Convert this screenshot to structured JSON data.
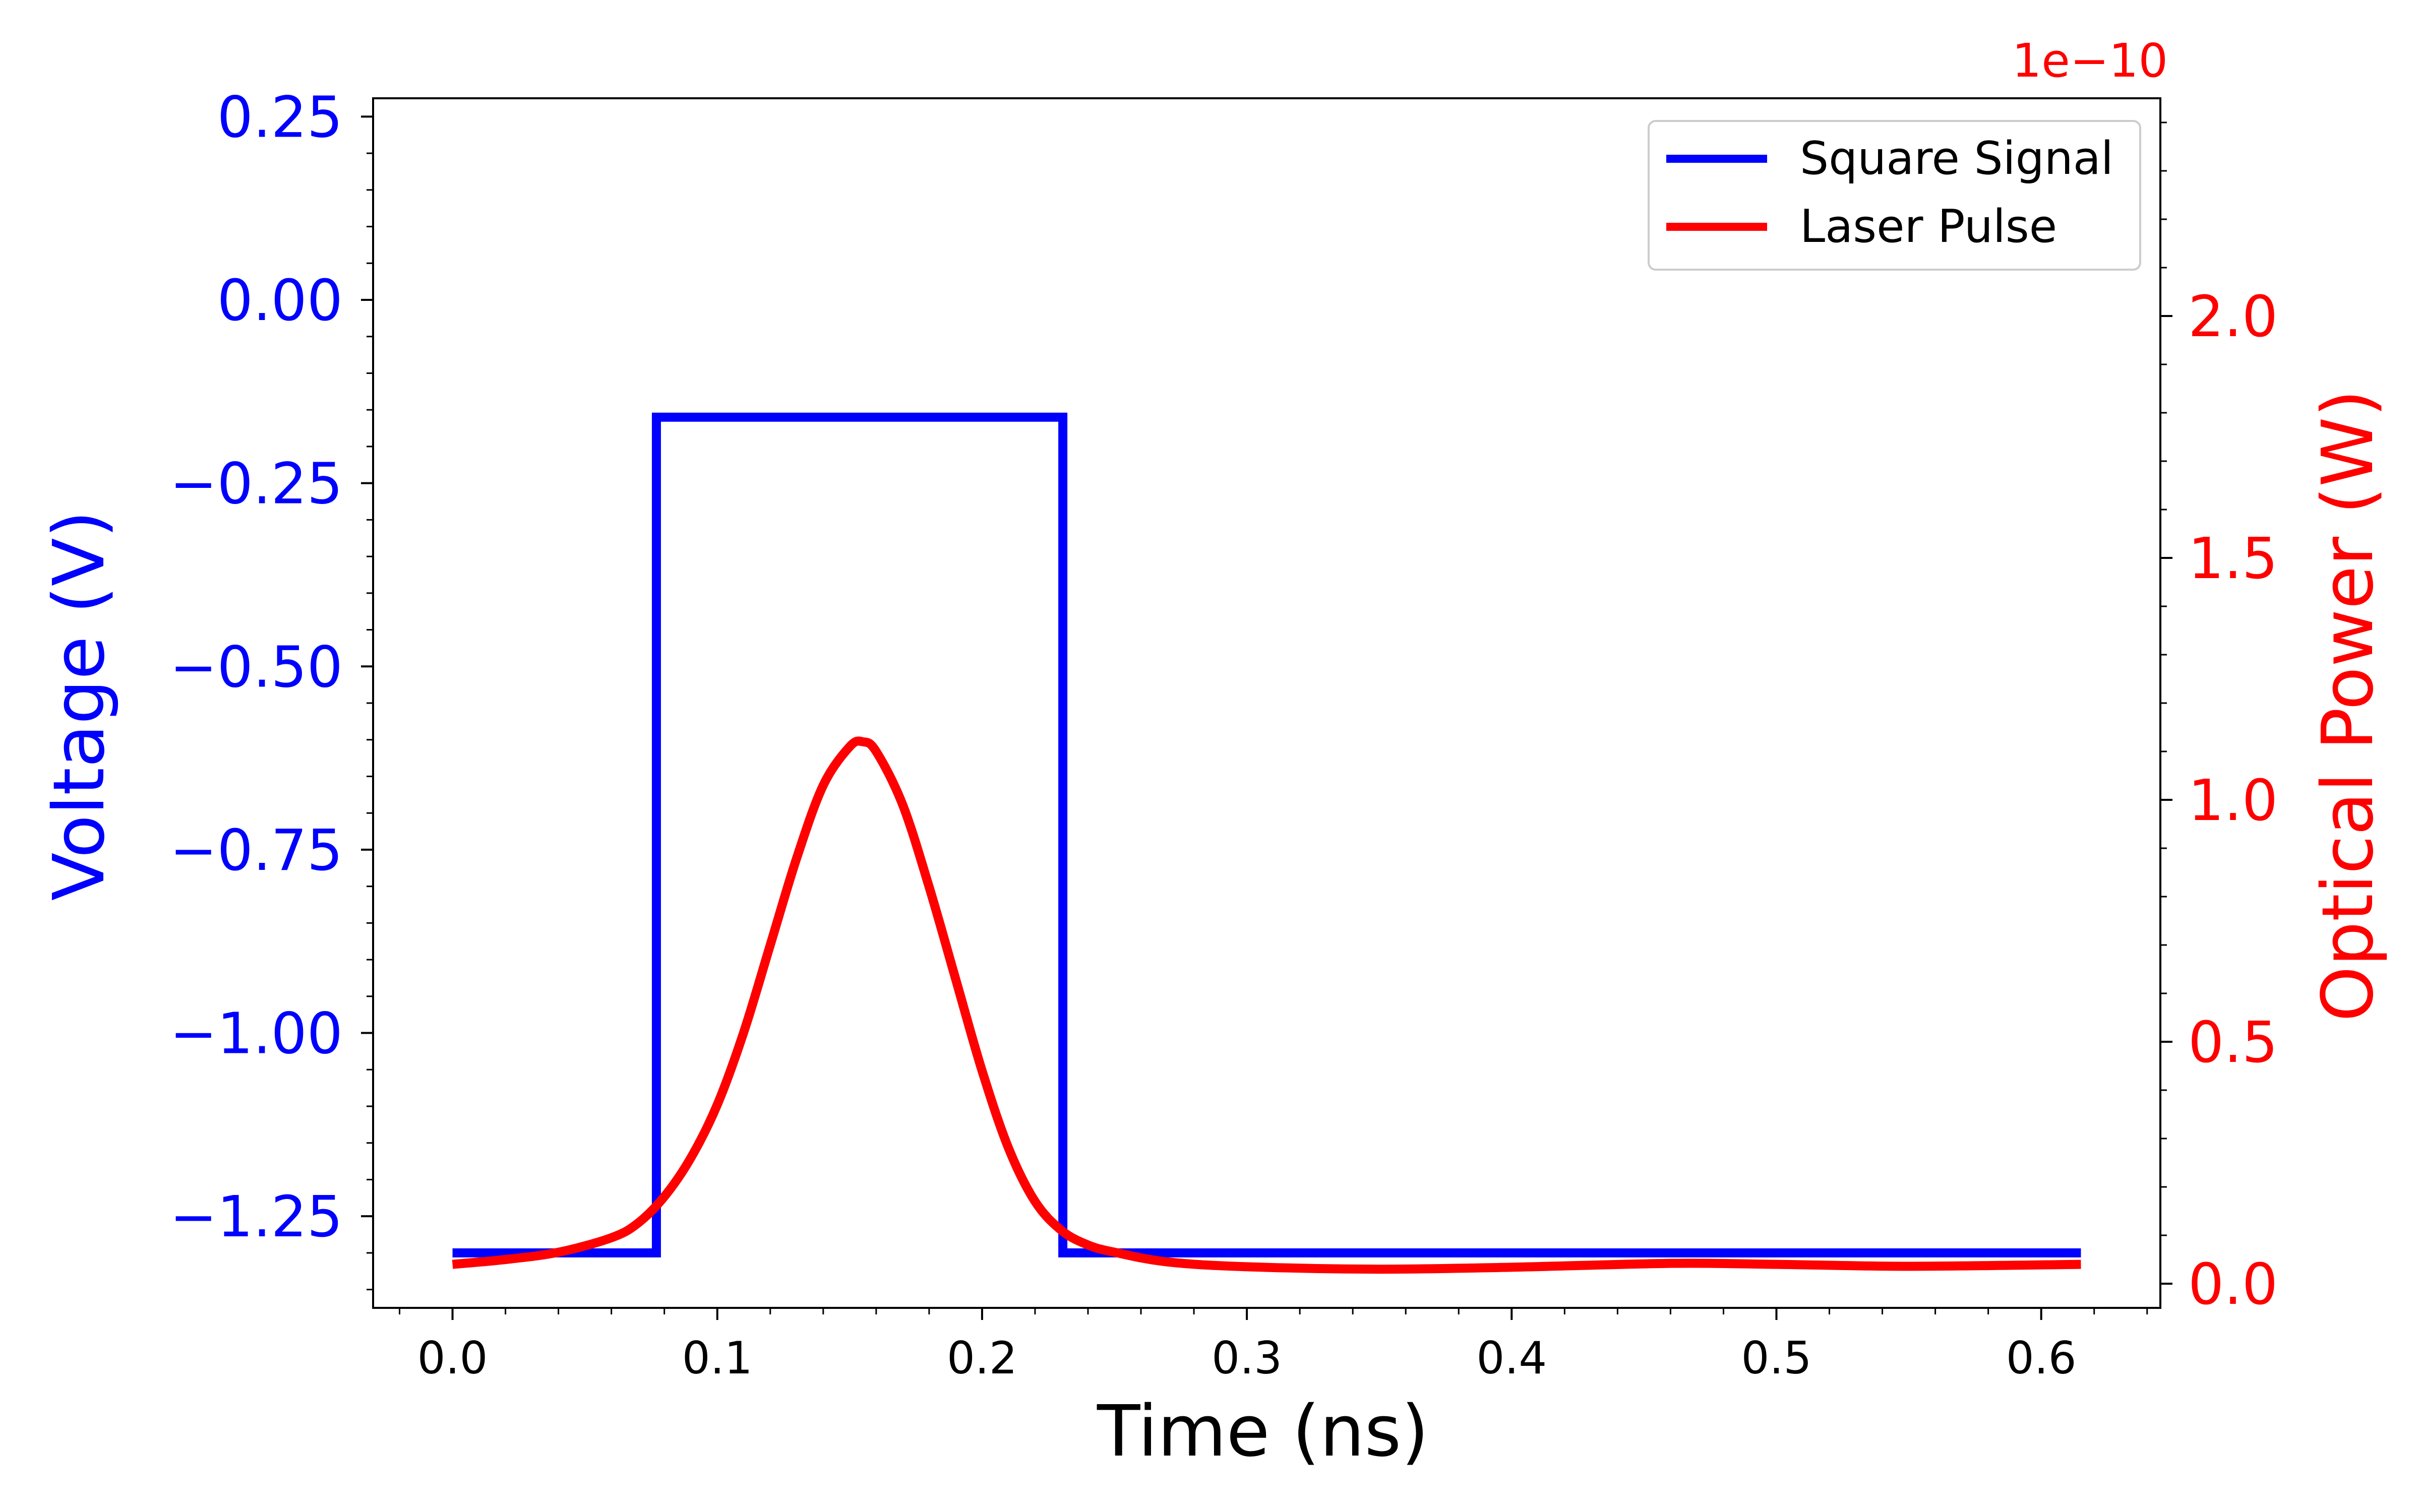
{
  "chart_data": {
    "type": "line",
    "xlabel": "Time (ns)",
    "ylabel": "Voltage (V)",
    "y2label": "Optical Power (W)",
    "y2_offset_text": "1e−10",
    "xlim": [
      -0.03,
      0.645
    ],
    "ylim": [
      -1.375,
      0.275
    ],
    "y2lim": [
      -0.05,
      2.45
    ],
    "x_ticks": [
      0.0,
      0.1,
      0.2,
      0.3,
      0.4,
      0.5,
      0.6
    ],
    "x_tick_labels": [
      "0.0",
      "0.1",
      "0.2",
      "0.3",
      "0.4",
      "0.5",
      "0.6"
    ],
    "y_ticks": [
      0.25,
      0.0,
      -0.25,
      -0.5,
      -0.75,
      -1.0,
      -1.25
    ],
    "y_tick_labels": [
      "0.25",
      "0.00",
      "−0.25",
      "−0.50",
      "−0.75",
      "−1.00",
      "−1.25"
    ],
    "y2_ticks": [
      2.0,
      1.5,
      1.0,
      0.5,
      0.0
    ],
    "y2_tick_labels": [
      "2.0",
      "1.5",
      "1.0",
      "0.5",
      "0.0"
    ],
    "grid": false,
    "legend_position": "top-right",
    "colors": {
      "voltage": "#0000ff",
      "power": "#ff0000",
      "axes": "#000000"
    },
    "series": [
      {
        "name": "Square Signal",
        "axis": "left",
        "color": "#0000ff",
        "x": [
          0.0,
          0.077,
          0.077,
          0.2305,
          0.2305,
          0.615
        ],
        "y": [
          -1.3,
          -1.3,
          -0.16,
          -0.16,
          -1.3,
          -1.3
        ]
      },
      {
        "name": "Laser Pulse",
        "axis": "right",
        "color": "#ff0000",
        "x": [
          0.0,
          0.02,
          0.04,
          0.06,
          0.07,
          0.08,
          0.09,
          0.1,
          0.11,
          0.12,
          0.13,
          0.14,
          0.15,
          0.155,
          0.16,
          0.17,
          0.18,
          0.19,
          0.2,
          0.21,
          0.22,
          0.23,
          0.24,
          0.25,
          0.27,
          0.3,
          0.35,
          0.4,
          0.46,
          0.5,
          0.55,
          0.615
        ],
        "y": [
          0.04,
          0.05,
          0.065,
          0.095,
          0.125,
          0.18,
          0.26,
          0.37,
          0.52,
          0.7,
          0.88,
          1.03,
          1.11,
          1.12,
          1.1,
          0.99,
          0.82,
          0.63,
          0.44,
          0.28,
          0.17,
          0.11,
          0.08,
          0.065,
          0.045,
          0.035,
          0.03,
          0.034,
          0.042,
          0.04,
          0.036,
          0.04
        ]
      }
    ]
  }
}
